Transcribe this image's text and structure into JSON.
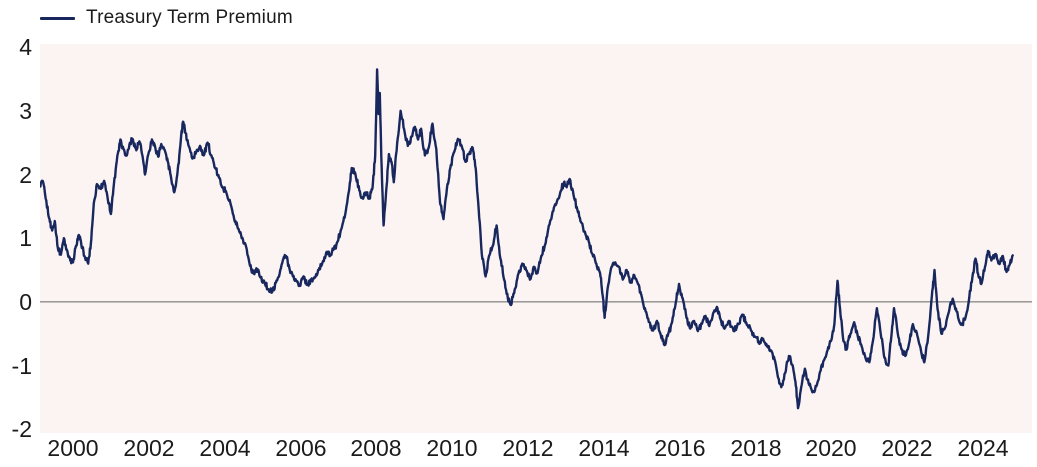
{
  "legend": {
    "label": "Treasury Term Premium"
  },
  "colors": {
    "line": "#18285e",
    "plot_background": "#fcf4f2",
    "zero_line": "#8c8c8c",
    "text": "#1b1b1b",
    "page_background": "#ffffff"
  },
  "chart_data": {
    "type": "line",
    "title": "",
    "xlabel": "",
    "ylabel": "",
    "legend_position": "top-left",
    "grid": false,
    "zero_line": true,
    "x_range": [
      1999.13,
      2025.29
    ],
    "y_range": [
      -2.06,
      4.05
    ],
    "x_ticks": [
      2000,
      2002,
      2004,
      2006,
      2008,
      2010,
      2012,
      2014,
      2016,
      2018,
      2020,
      2022,
      2024
    ],
    "y_ticks": [
      4,
      3,
      2,
      1,
      0,
      -1,
      -2
    ],
    "noise_amplitude": 0.055,
    "noise_subdivisions": 6,
    "series": [
      {
        "name": "Treasury Term Premium",
        "points": [
          [
            1999.13,
            1.82
          ],
          [
            1999.2,
            1.9
          ],
          [
            1999.28,
            1.62
          ],
          [
            1999.38,
            1.3
          ],
          [
            1999.45,
            1.12
          ],
          [
            1999.52,
            1.27
          ],
          [
            1999.6,
            0.85
          ],
          [
            1999.68,
            0.74
          ],
          [
            1999.76,
            1.0
          ],
          [
            1999.85,
            0.8
          ],
          [
            1999.93,
            0.65
          ],
          [
            2000.0,
            0.62
          ],
          [
            2000.08,
            0.88
          ],
          [
            2000.15,
            1.05
          ],
          [
            2000.22,
            0.9
          ],
          [
            2000.3,
            0.72
          ],
          [
            2000.4,
            0.6
          ],
          [
            2000.47,
            0.9
          ],
          [
            2000.55,
            1.55
          ],
          [
            2000.63,
            1.85
          ],
          [
            2000.72,
            1.78
          ],
          [
            2000.82,
            1.9
          ],
          [
            2000.92,
            1.6
          ],
          [
            2001.0,
            1.38
          ],
          [
            2001.08,
            1.85
          ],
          [
            2001.17,
            2.3
          ],
          [
            2001.25,
            2.55
          ],
          [
            2001.33,
            2.4
          ],
          [
            2001.42,
            2.3
          ],
          [
            2001.5,
            2.5
          ],
          [
            2001.58,
            2.55
          ],
          [
            2001.67,
            2.38
          ],
          [
            2001.75,
            2.52
          ],
          [
            2001.83,
            2.3
          ],
          [
            2001.9,
            2.0
          ],
          [
            2002.0,
            2.35
          ],
          [
            2002.08,
            2.55
          ],
          [
            2002.17,
            2.42
          ],
          [
            2002.25,
            2.28
          ],
          [
            2002.33,
            2.48
          ],
          [
            2002.42,
            2.38
          ],
          [
            2002.5,
            2.2
          ],
          [
            2002.58,
            1.98
          ],
          [
            2002.67,
            1.72
          ],
          [
            2002.75,
            2.0
          ],
          [
            2002.83,
            2.45
          ],
          [
            2002.9,
            2.83
          ],
          [
            2002.97,
            2.65
          ],
          [
            2003.05,
            2.45
          ],
          [
            2003.15,
            2.25
          ],
          [
            2003.25,
            2.35
          ],
          [
            2003.35,
            2.45
          ],
          [
            2003.45,
            2.3
          ],
          [
            2003.55,
            2.5
          ],
          [
            2003.65,
            2.3
          ],
          [
            2003.75,
            2.1
          ],
          [
            2003.85,
            1.95
          ],
          [
            2003.95,
            1.8
          ],
          [
            2004.05,
            1.7
          ],
          [
            2004.15,
            1.55
          ],
          [
            2004.25,
            1.3
          ],
          [
            2004.35,
            1.15
          ],
          [
            2004.45,
            1.0
          ],
          [
            2004.55,
            0.9
          ],
          [
            2004.65,
            0.62
          ],
          [
            2004.75,
            0.45
          ],
          [
            2004.85,
            0.52
          ],
          [
            2004.95,
            0.38
          ],
          [
            2005.05,
            0.3
          ],
          [
            2005.15,
            0.2
          ],
          [
            2005.25,
            0.15
          ],
          [
            2005.35,
            0.3
          ],
          [
            2005.45,
            0.45
          ],
          [
            2005.55,
            0.68
          ],
          [
            2005.62,
            0.72
          ],
          [
            2005.7,
            0.55
          ],
          [
            2005.8,
            0.4
          ],
          [
            2005.9,
            0.32
          ],
          [
            2005.98,
            0.25
          ],
          [
            2006.08,
            0.4
          ],
          [
            2006.18,
            0.27
          ],
          [
            2006.28,
            0.34
          ],
          [
            2006.38,
            0.38
          ],
          [
            2006.48,
            0.5
          ],
          [
            2006.58,
            0.62
          ],
          [
            2006.68,
            0.78
          ],
          [
            2006.78,
            0.72
          ],
          [
            2006.88,
            0.83
          ],
          [
            2006.98,
            0.95
          ],
          [
            2007.08,
            1.15
          ],
          [
            2007.18,
            1.38
          ],
          [
            2007.28,
            1.75
          ],
          [
            2007.35,
            2.1
          ],
          [
            2007.45,
            2.0
          ],
          [
            2007.55,
            1.75
          ],
          [
            2007.65,
            1.62
          ],
          [
            2007.73,
            1.72
          ],
          [
            2007.82,
            1.62
          ],
          [
            2007.9,
            1.8
          ],
          [
            2007.97,
            2.3
          ],
          [
            2008.02,
            3.65
          ],
          [
            2008.06,
            2.95
          ],
          [
            2008.09,
            3.28
          ],
          [
            2008.14,
            2.1
          ],
          [
            2008.19,
            1.2
          ],
          [
            2008.26,
            1.75
          ],
          [
            2008.33,
            2.32
          ],
          [
            2008.4,
            2.2
          ],
          [
            2008.46,
            1.88
          ],
          [
            2008.55,
            2.5
          ],
          [
            2008.64,
            3.0
          ],
          [
            2008.73,
            2.72
          ],
          [
            2008.83,
            2.45
          ],
          [
            2008.93,
            2.6
          ],
          [
            2009.02,
            2.75
          ],
          [
            2009.1,
            2.55
          ],
          [
            2009.18,
            2.72
          ],
          [
            2009.28,
            2.3
          ],
          [
            2009.38,
            2.42
          ],
          [
            2009.48,
            2.8
          ],
          [
            2009.58,
            2.4
          ],
          [
            2009.68,
            1.55
          ],
          [
            2009.77,
            1.3
          ],
          [
            2009.86,
            1.78
          ],
          [
            2009.95,
            2.1
          ],
          [
            2010.05,
            2.35
          ],
          [
            2010.15,
            2.56
          ],
          [
            2010.25,
            2.45
          ],
          [
            2010.35,
            2.2
          ],
          [
            2010.45,
            2.32
          ],
          [
            2010.54,
            2.42
          ],
          [
            2010.62,
            2.1
          ],
          [
            2010.7,
            1.45
          ],
          [
            2010.78,
            0.75
          ],
          [
            2010.88,
            0.4
          ],
          [
            2010.97,
            0.72
          ],
          [
            2011.07,
            0.88
          ],
          [
            2011.17,
            1.2
          ],
          [
            2011.27,
            0.68
          ],
          [
            2011.37,
            0.35
          ],
          [
            2011.47,
            0.05
          ],
          [
            2011.55,
            -0.05
          ],
          [
            2011.65,
            0.2
          ],
          [
            2011.75,
            0.45
          ],
          [
            2011.85,
            0.6
          ],
          [
            2011.95,
            0.5
          ],
          [
            2012.05,
            0.35
          ],
          [
            2012.15,
            0.55
          ],
          [
            2012.25,
            0.45
          ],
          [
            2012.35,
            0.72
          ],
          [
            2012.45,
            0.9
          ],
          [
            2012.55,
            1.2
          ],
          [
            2012.65,
            1.42
          ],
          [
            2012.75,
            1.55
          ],
          [
            2012.85,
            1.72
          ],
          [
            2012.95,
            1.88
          ],
          [
            2013.02,
            1.8
          ],
          [
            2013.1,
            1.93
          ],
          [
            2013.2,
            1.68
          ],
          [
            2013.3,
            1.45
          ],
          [
            2013.4,
            1.25
          ],
          [
            2013.5,
            1.1
          ],
          [
            2013.6,
            0.95
          ],
          [
            2013.7,
            0.75
          ],
          [
            2013.8,
            0.6
          ],
          [
            2013.9,
            0.45
          ],
          [
            2013.97,
            0.1
          ],
          [
            2014.02,
            -0.25
          ],
          [
            2014.1,
            0.22
          ],
          [
            2014.2,
            0.55
          ],
          [
            2014.3,
            0.62
          ],
          [
            2014.4,
            0.55
          ],
          [
            2014.5,
            0.35
          ],
          [
            2014.6,
            0.5
          ],
          [
            2014.7,
            0.3
          ],
          [
            2014.8,
            0.42
          ],
          [
            2014.9,
            0.28
          ],
          [
            2015.0,
            0.08
          ],
          [
            2015.1,
            -0.15
          ],
          [
            2015.2,
            -0.32
          ],
          [
            2015.3,
            -0.45
          ],
          [
            2015.4,
            -0.3
          ],
          [
            2015.5,
            -0.52
          ],
          [
            2015.6,
            -0.68
          ],
          [
            2015.7,
            -0.5
          ],
          [
            2015.8,
            -0.32
          ],
          [
            2015.9,
            0.0
          ],
          [
            2015.98,
            0.28
          ],
          [
            2016.08,
            0.05
          ],
          [
            2016.18,
            -0.25
          ],
          [
            2016.28,
            -0.42
          ],
          [
            2016.38,
            -0.3
          ],
          [
            2016.48,
            -0.46
          ],
          [
            2016.58,
            -0.35
          ],
          [
            2016.68,
            -0.22
          ],
          [
            2016.78,
            -0.38
          ],
          [
            2016.88,
            -0.18
          ],
          [
            2016.98,
            -0.08
          ],
          [
            2017.08,
            -0.28
          ],
          [
            2017.18,
            -0.42
          ],
          [
            2017.3,
            -0.3
          ],
          [
            2017.42,
            -0.46
          ],
          [
            2017.55,
            -0.35
          ],
          [
            2017.65,
            -0.2
          ],
          [
            2017.75,
            -0.32
          ],
          [
            2017.88,
            -0.45
          ],
          [
            2018.0,
            -0.55
          ],
          [
            2018.1,
            -0.66
          ],
          [
            2018.2,
            -0.58
          ],
          [
            2018.3,
            -0.7
          ],
          [
            2018.4,
            -0.76
          ],
          [
            2018.5,
            -0.9
          ],
          [
            2018.6,
            -1.2
          ],
          [
            2018.68,
            -1.34
          ],
          [
            2018.78,
            -1.12
          ],
          [
            2018.88,
            -0.85
          ],
          [
            2018.98,
            -1.0
          ],
          [
            2019.05,
            -1.25
          ],
          [
            2019.12,
            -1.67
          ],
          [
            2019.2,
            -1.35
          ],
          [
            2019.3,
            -1.05
          ],
          [
            2019.4,
            -1.28
          ],
          [
            2019.5,
            -1.42
          ],
          [
            2019.6,
            -1.33
          ],
          [
            2019.7,
            -1.1
          ],
          [
            2019.8,
            -0.92
          ],
          [
            2019.9,
            -0.76
          ],
          [
            2020.0,
            -0.6
          ],
          [
            2020.08,
            -0.35
          ],
          [
            2020.16,
            0.33
          ],
          [
            2020.24,
            -0.2
          ],
          [
            2020.32,
            -0.62
          ],
          [
            2020.4,
            -0.75
          ],
          [
            2020.5,
            -0.5
          ],
          [
            2020.6,
            -0.32
          ],
          [
            2020.7,
            -0.55
          ],
          [
            2020.8,
            -0.7
          ],
          [
            2020.9,
            -0.88
          ],
          [
            2021.0,
            -0.95
          ],
          [
            2021.1,
            -0.6
          ],
          [
            2021.2,
            -0.1
          ],
          [
            2021.3,
            -0.5
          ],
          [
            2021.4,
            -0.88
          ],
          [
            2021.5,
            -1.0
          ],
          [
            2021.58,
            -0.55
          ],
          [
            2021.65,
            -0.1
          ],
          [
            2021.75,
            -0.5
          ],
          [
            2021.85,
            -0.75
          ],
          [
            2021.95,
            -0.85
          ],
          [
            2022.05,
            -0.65
          ],
          [
            2022.15,
            -0.35
          ],
          [
            2022.25,
            -0.48
          ],
          [
            2022.35,
            -0.72
          ],
          [
            2022.45,
            -0.95
          ],
          [
            2022.55,
            -0.55
          ],
          [
            2022.65,
            0.1
          ],
          [
            2022.72,
            0.5
          ],
          [
            2022.8,
            -0.12
          ],
          [
            2022.9,
            -0.5
          ],
          [
            2023.0,
            -0.4
          ],
          [
            2023.1,
            -0.15
          ],
          [
            2023.2,
            0.05
          ],
          [
            2023.3,
            -0.15
          ],
          [
            2023.42,
            -0.36
          ],
          [
            2023.52,
            -0.28
          ],
          [
            2023.62,
            0.0
          ],
          [
            2023.72,
            0.4
          ],
          [
            2023.8,
            0.68
          ],
          [
            2023.88,
            0.4
          ],
          [
            2023.95,
            0.28
          ],
          [
            2024.05,
            0.55
          ],
          [
            2024.13,
            0.8
          ],
          [
            2024.22,
            0.65
          ],
          [
            2024.32,
            0.75
          ],
          [
            2024.42,
            0.6
          ],
          [
            2024.52,
            0.72
          ],
          [
            2024.62,
            0.47
          ],
          [
            2024.7,
            0.58
          ],
          [
            2024.78,
            0.73
          ]
        ]
      }
    ]
  }
}
